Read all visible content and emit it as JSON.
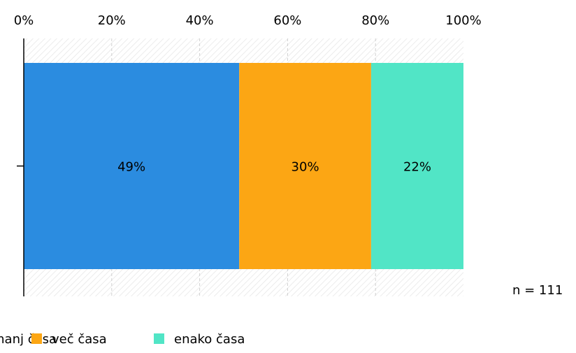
{
  "chart_data": {
    "type": "bar",
    "orientation": "horizontal",
    "stacked": true,
    "xlim": [
      0,
      100
    ],
    "x_ticks": [
      "0%",
      "20%",
      "40%",
      "60%",
      "80%",
      "100%"
    ],
    "x_tick_values": [
      0,
      20,
      40,
      60,
      80,
      100
    ],
    "grid": true,
    "legend_position": "bottom",
    "series": [
      {
        "name": "manj časa",
        "value": 49,
        "label": "49%",
        "color": "#2b8ce0"
      },
      {
        "name": "več časa",
        "value": 30,
        "label": "30%",
        "color": "#fca614"
      },
      {
        "name": "enako časa",
        "value": 22,
        "label": "22%",
        "color": "#51e5c6"
      }
    ],
    "sample_note": "n = 111"
  }
}
